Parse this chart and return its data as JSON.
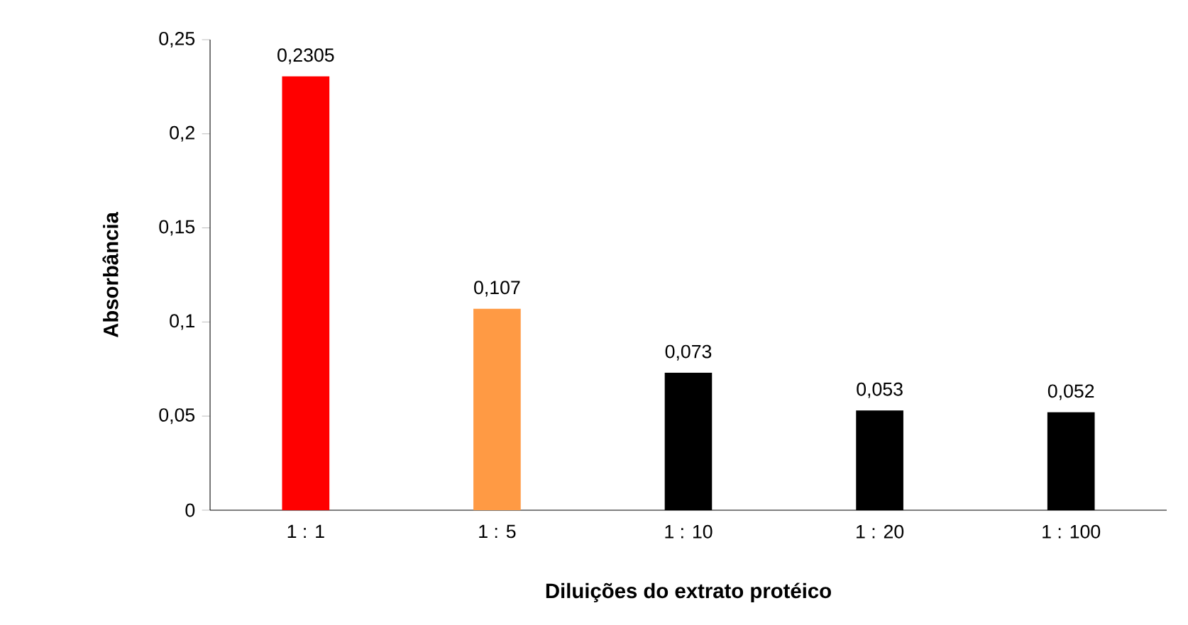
{
  "chart_data": {
    "type": "bar",
    "xlabel": "Diluições do extrato protéico",
    "ylabel": "Absorbância",
    "categories": [
      "1 : 1",
      "1 : 5",
      "1 : 10",
      "1 : 20",
      "1 : 100"
    ],
    "values": [
      0.2305,
      0.107,
      0.073,
      0.053,
      0.052
    ],
    "colors": [
      "#ff0000",
      "#ff9a44",
      "#000000",
      "#000000",
      "#000000"
    ],
    "value_labels": [
      "0,2305",
      "0,107",
      "0,073",
      "0,053",
      "0,052"
    ],
    "ylim": [
      0,
      0.25
    ],
    "yticks": [
      0,
      {
        "value": 0.05,
        "label": "0,05"
      },
      {
        "value": 0.1,
        "label": "0,1"
      },
      {
        "value": 0.15,
        "label": "0,15"
      },
      {
        "value": 0.2,
        "label": "0,2"
      },
      {
        "value": 0.25,
        "label": "0,25"
      }
    ]
  }
}
